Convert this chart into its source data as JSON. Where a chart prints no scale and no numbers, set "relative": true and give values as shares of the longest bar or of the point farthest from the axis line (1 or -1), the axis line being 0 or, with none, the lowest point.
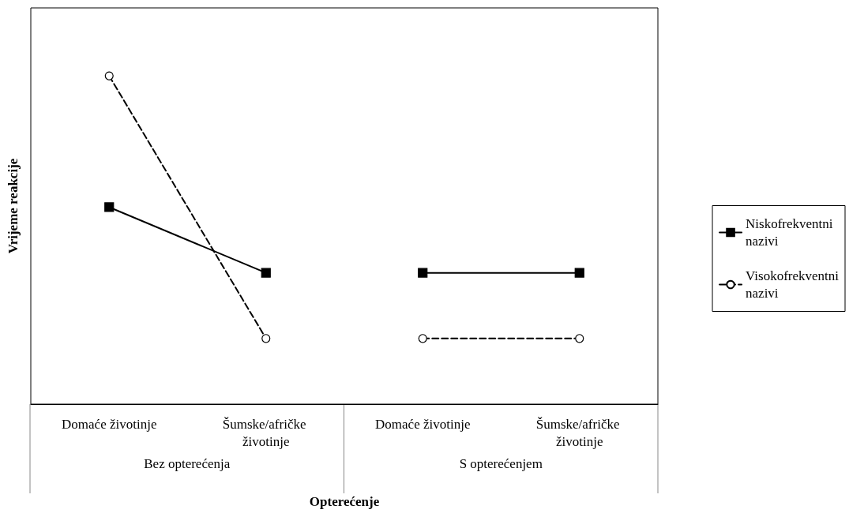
{
  "chart_data": {
    "type": "line",
    "relative": true,
    "ylabel": "Vrijeme reakcije",
    "xlabel": "Opterećenje",
    "categories": [
      "Domaće životinje",
      "Šumske/afričke životinje",
      "Domaće životinje",
      "Šumske/afričke životinje"
    ],
    "annotations": [
      "Bez opterećenja",
      "S opterećenjem"
    ],
    "series": [
      {
        "name": "Niskofrekventni nazivi",
        "color": "#000000",
        "marker": "square",
        "line_style": "solid",
        "values": [
          0.6,
          0.4,
          0.4,
          0.4
        ]
      },
      {
        "name": "Visokofrekventni nazivi",
        "color": "#000000",
        "marker": "circle",
        "line_style": "dashed",
        "values": [
          1,
          0.2,
          0.2,
          0.2
        ]
      }
    ],
    "grid": false,
    "legend": "right"
  }
}
